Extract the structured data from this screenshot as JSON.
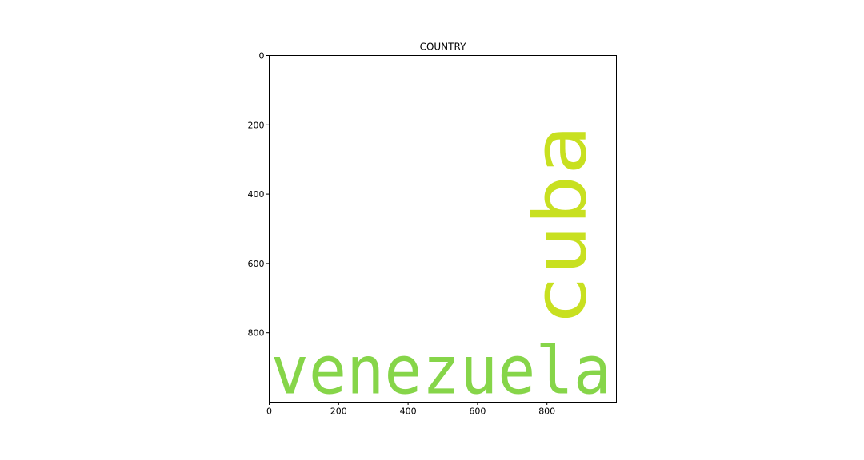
{
  "chart_data": {
    "type": "wordcloud",
    "title": "COUNTRY",
    "xlim": [
      0,
      1000
    ],
    "ylim": [
      1000,
      0
    ],
    "x_ticks": [
      0,
      200,
      400,
      600,
      800
    ],
    "y_ticks": [
      0,
      200,
      400,
      600,
      800
    ],
    "grid": false,
    "words": [
      {
        "text": "venezuela",
        "color": "#86d549",
        "orientation": "horizontal",
        "x_start": 5,
        "x_end": 985,
        "baseline_y": 975,
        "size": 190
      },
      {
        "text": "cuba",
        "color": "#c8e020",
        "orientation": "vertical",
        "x_baseline": 910,
        "y_start": 780,
        "y_end": 200,
        "size": 210
      }
    ]
  }
}
